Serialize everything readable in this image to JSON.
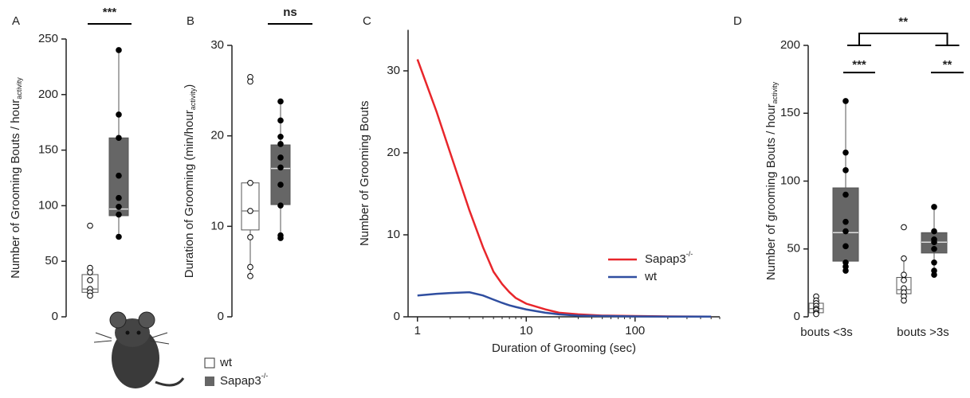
{
  "chart_data": [
    {
      "type": "box",
      "panel": "A",
      "ylabel": "Number of Grooming Bouts / hour",
      "ylabel_sub": "activity",
      "ylim": [
        0,
        250
      ],
      "yticks": [
        0,
        50,
        100,
        150,
        200,
        250
      ],
      "significance": "***",
      "series": [
        {
          "name": "wt",
          "fill": "#ffffff",
          "boxes": [
            {
              "box": [
                22,
                38
              ],
              "median": 25,
              "whisker": [
                19,
                44
              ],
              "points": [
                82,
                44,
                40,
                33,
                25,
                22,
                19
              ]
            }
          ]
        },
        {
          "name": "Sapap3",
          "name_sup": "-/-",
          "fill": "#666666",
          "boxes": [
            {
              "box": [
                91,
                161
              ],
              "median": 97,
              "whisker": [
                72,
                240
              ],
              "points": [
                240,
                182,
                161,
                127,
                107,
                99,
                92,
                72
              ]
            }
          ]
        }
      ]
    },
    {
      "type": "box",
      "panel": "B",
      "ylabel": "Duration of Grooming (min/hour",
      "ylabel_sub": "activity",
      "ylabel_end": ")",
      "ylim": [
        0,
        30
      ],
      "yticks": [
        0,
        10,
        20,
        30
      ],
      "significance": "ns",
      "series": [
        {
          "name": "wt",
          "fill": "#ffffff",
          "boxes": [
            {
              "box": [
                9.6,
                14.8
              ],
              "median": 11.7,
              "whisker": [
                4.5,
                14.8
              ],
              "points": [
                26.5,
                26,
                14.8,
                11.7,
                8.8,
                5.5,
                4.5
              ]
            }
          ]
        },
        {
          "name": "Sapap3",
          "name_sup": "-/-",
          "fill": "#666666",
          "boxes": [
            {
              "box": [
                12.4,
                19
              ],
              "median": 16.4,
              "whisker": [
                8.7,
                23.8
              ],
              "points": [
                23.8,
                21.7,
                19.9,
                19.1,
                17.6,
                16.5,
                14.6,
                12.3,
                9,
                8.7
              ]
            }
          ]
        }
      ]
    },
    {
      "type": "line",
      "panel": "C",
      "xlabel": "Duration of Grooming (sec)",
      "ylabel": "Number of Grooming Bouts",
      "x": [
        1,
        1.5,
        2,
        3,
        4,
        5,
        6,
        7,
        8,
        10,
        15,
        20,
        30,
        50,
        100,
        200,
        500
      ],
      "xlim": [
        0.82,
        600
      ],
      "xticks": [
        1,
        10,
        100
      ],
      "xscale": "log",
      "ylim": [
        0,
        35
      ],
      "yticks": [
        0,
        10,
        20,
        30
      ],
      "legend": "lower right",
      "series": [
        {
          "name": "Sapap3",
          "name_sup": "-/-",
          "color": "#e8262b",
          "values": [
            31.4,
            25,
            20,
            13,
            8.5,
            5.5,
            4,
            3,
            2.3,
            1.6,
            0.9,
            0.5,
            0.3,
            0.15,
            0.1,
            0.05,
            0.02
          ]
        },
        {
          "name": "wt",
          "color": "#2f4ea0",
          "values": [
            2.6,
            2.8,
            2.9,
            3.0,
            2.6,
            2.1,
            1.7,
            1.4,
            1.2,
            0.9,
            0.5,
            0.3,
            0.15,
            0.1,
            0.05,
            0.03,
            0.02
          ]
        }
      ]
    },
    {
      "type": "box",
      "panel": "D",
      "ylabel": "Number of grooming Bouts / hour",
      "ylabel_sub": "activity",
      "ylim": [
        0,
        200
      ],
      "yticks": [
        0,
        50,
        100,
        150,
        200
      ],
      "categories": [
        "bouts <3s",
        "bouts >3s"
      ],
      "significance": [
        "***",
        "**"
      ],
      "significance_between": "**",
      "series": [
        {
          "name": "wt",
          "fill": "#ffffff",
          "boxes": [
            {
              "box": [
                3,
                10
              ],
              "median": 6,
              "whisker": [
                2,
                15
              ],
              "points": [
                15,
                12,
                10,
                8,
                6,
                5,
                3,
                2
              ]
            },
            {
              "box": [
                17,
                29
              ],
              "median": 20,
              "whisker": [
                12,
                43
              ],
              "points": [
                66,
                43,
                31,
                27,
                21,
                18,
                15,
                12
              ]
            }
          ]
        },
        {
          "name": "Sapap3",
          "name_sup": "-/-",
          "fill": "#666666",
          "boxes": [
            {
              "box": [
                41,
                95
              ],
              "median": 62,
              "whisker": [
                34,
                159
              ],
              "points": [
                159,
                121,
                108,
                90,
                70,
                63,
                52,
                40,
                37,
                34
              ]
            },
            {
              "box": [
                47,
                62
              ],
              "median": 55,
              "whisker": [
                31,
                81
              ],
              "points": [
                81,
                63,
                57,
                55,
                50,
                40,
                34,
                31
              ]
            }
          ]
        }
      ]
    }
  ]
}
